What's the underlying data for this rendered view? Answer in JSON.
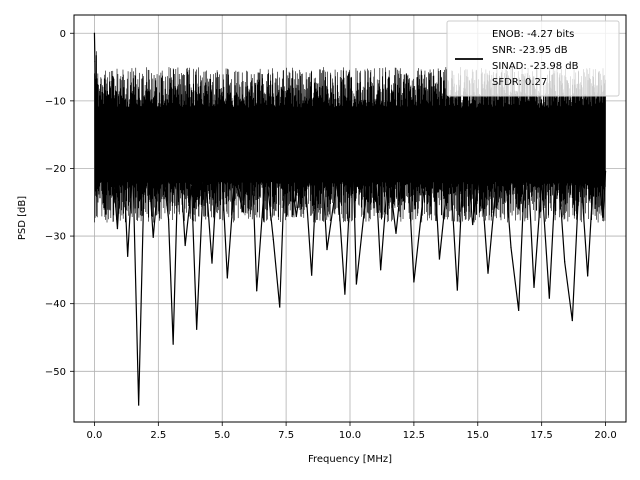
{
  "chart_data": {
    "type": "line",
    "title": "",
    "xlabel": "Frequency [MHz]",
    "ylabel": "PSD [dB]",
    "xlim": [
      -0.8,
      20.8
    ],
    "ylim": [
      -57.5,
      2.7
    ],
    "xticks": [
      0.0,
      2.5,
      5.0,
      7.5,
      10.0,
      12.5,
      15.0,
      17.5,
      20.0
    ],
    "xtick_labels": [
      "0.0",
      "2.5",
      "5.0",
      "7.5",
      "10.0",
      "12.5",
      "15.0",
      "17.5",
      "20.0"
    ],
    "yticks": [
      0,
      -10,
      -20,
      -30,
      -40,
      -50
    ],
    "ytick_labels": [
      "0",
      "−10",
      "−20",
      "−30",
      "−40",
      "−50"
    ],
    "grid": true,
    "legend_position": "top-right",
    "legend": {
      "lines": [
        "ENOB: -4.27 bits",
        "SNR: -23.95 dB",
        "SINAD: -23.98 dB",
        "SFDR: 0.27"
      ]
    },
    "series": [
      {
        "color": "#000000",
        "x": [
          0.0,
          0.02,
          0.05,
          0.1,
          0.2,
          0.4,
          0.6,
          0.9,
          1.1,
          1.3,
          1.5,
          1.73,
          2.0,
          2.3,
          2.6,
          2.9,
          3.08,
          3.3,
          3.55,
          3.8,
          4.0,
          4.3,
          4.6,
          4.9,
          5.2,
          5.5,
          5.8,
          6.1,
          6.35,
          6.7,
          7.0,
          7.25,
          7.5,
          7.9,
          8.2,
          8.5,
          8.8,
          9.1,
          9.5,
          9.8,
          10.1,
          10.25,
          10.6,
          10.9,
          11.2,
          11.5,
          11.8,
          12.2,
          12.5,
          12.9,
          13.2,
          13.5,
          13.9,
          14.2,
          14.5,
          14.8,
          15.1,
          15.4,
          15.7,
          16.0,
          16.3,
          16.6,
          16.9,
          17.2,
          17.5,
          17.8,
          18.1,
          18.4,
          18.7,
          19.0,
          19.3,
          19.6,
          19.9,
          20.0
        ],
        "y": [
          0.0,
          -4.2,
          -12.5,
          -20.1,
          -17.6,
          -25.8,
          -14.3,
          -28.9,
          -16.2,
          -33.0,
          -19.4,
          -55.0,
          -12.8,
          -30.2,
          -17.1,
          -27.5,
          -46.0,
          -15.8,
          -31.4,
          -22.6,
          -43.8,
          -18.3,
          -34.0,
          -13.9,
          -36.2,
          -20.7,
          -26.4,
          -11.2,
          -38.1,
          -19.8,
          -30.5,
          -40.5,
          -14.6,
          -27.1,
          -18.9,
          -35.8,
          -12.4,
          -32.0,
          -21.5,
          -38.6,
          -16.0,
          -37.1,
          -24.8,
          -13.5,
          -35.0,
          -20.2,
          -29.6,
          -15.1,
          -36.8,
          -22.9,
          -12.9,
          -33.4,
          -18.7,
          -38.0,
          -14.4,
          -28.3,
          -19.6,
          -35.5,
          -23.1,
          -16.8,
          -31.7,
          -41.0,
          -14.9,
          -37.6,
          -21.8,
          -39.2,
          -17.3,
          -33.8,
          -42.5,
          -19.1,
          -35.9,
          -16.5,
          -27.2,
          -20.4
        ]
      }
    ]
  }
}
